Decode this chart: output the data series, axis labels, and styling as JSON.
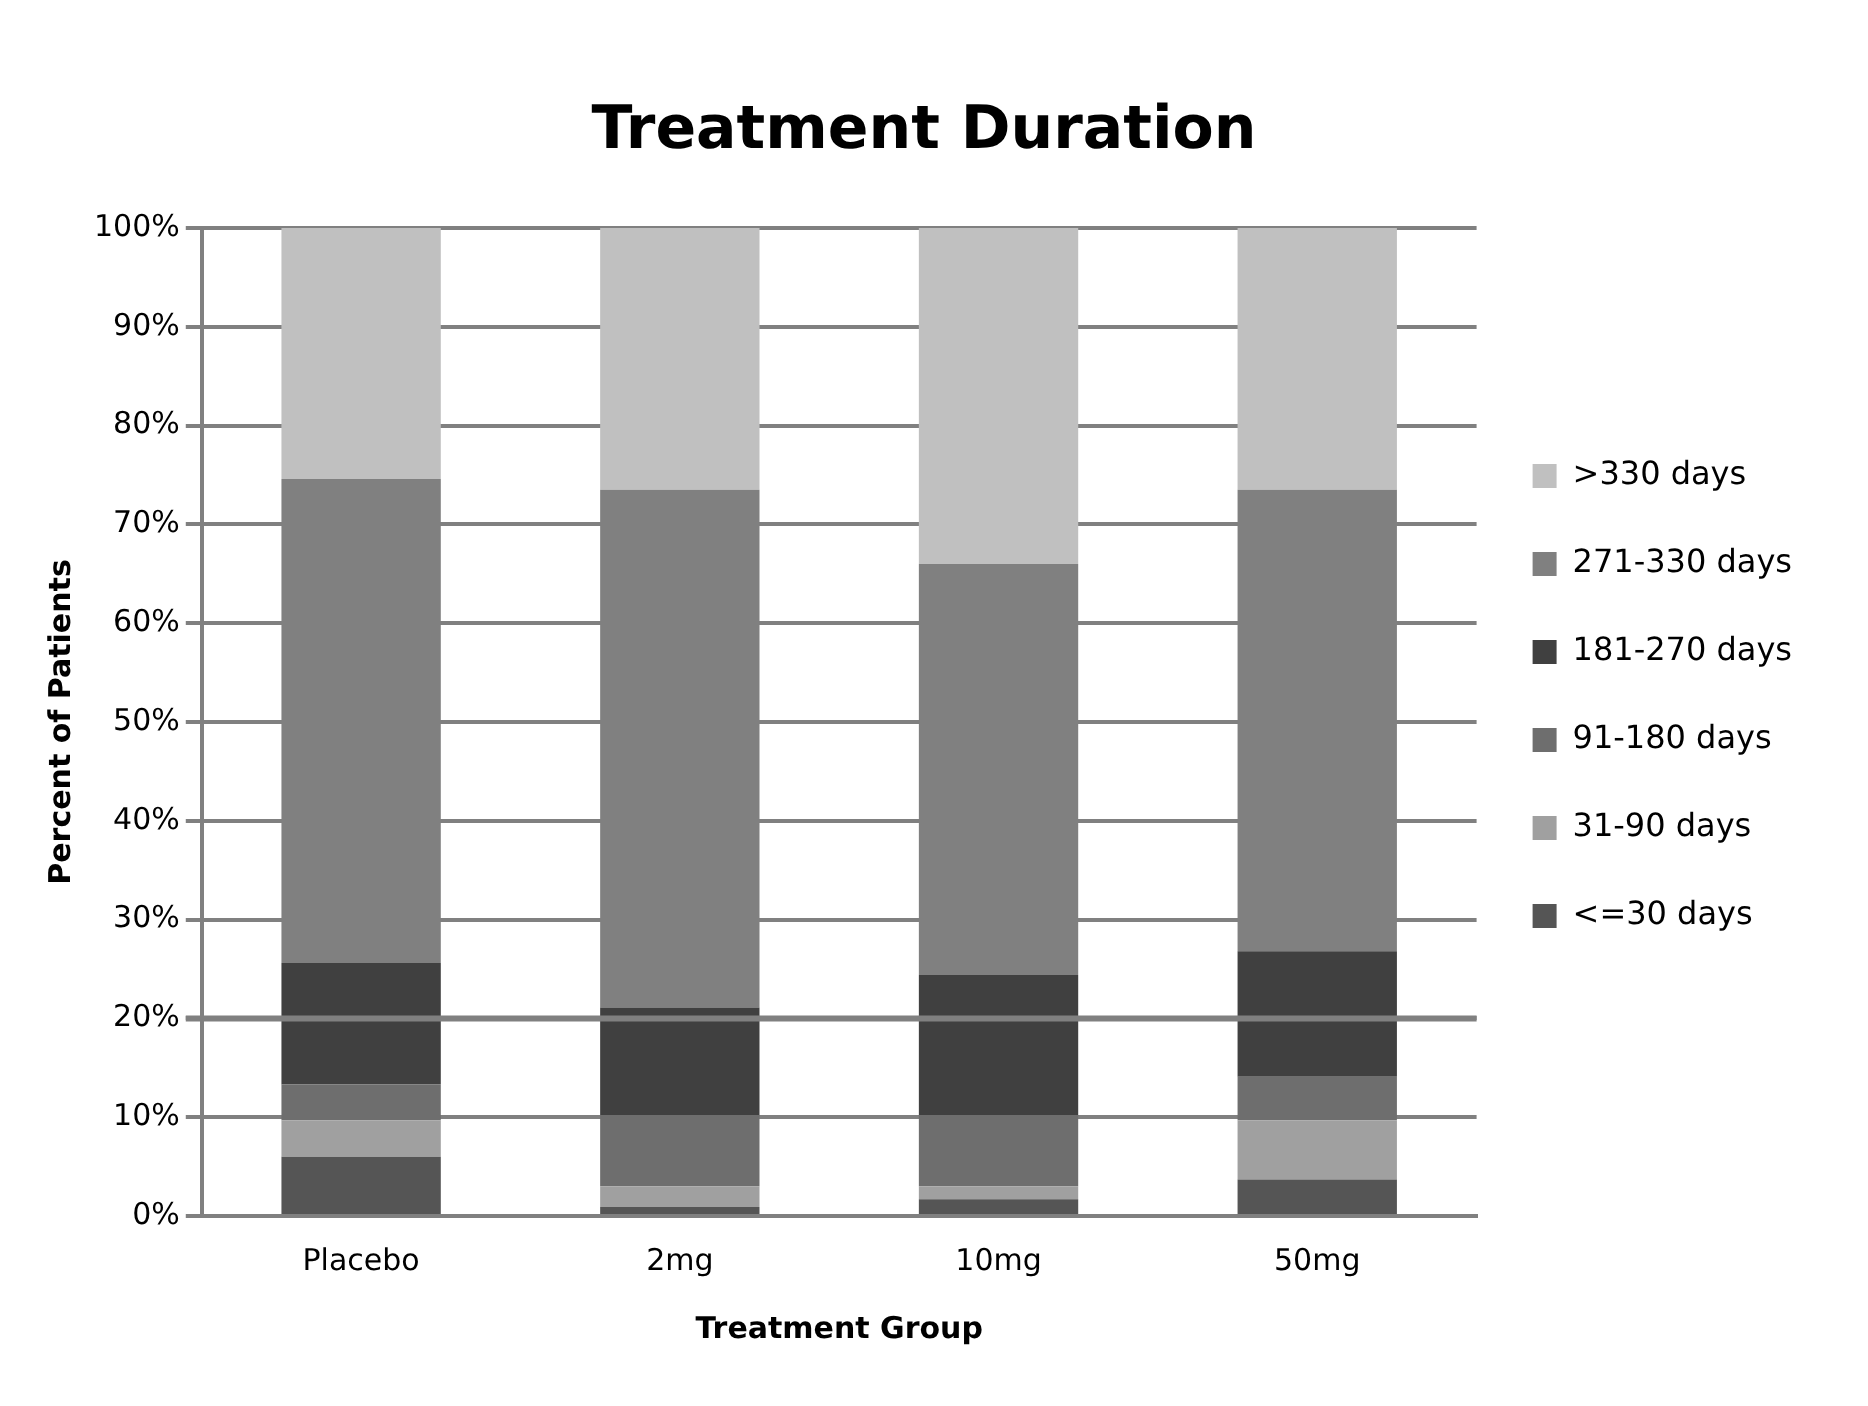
{
  "chart_data": {
    "type": "bar",
    "title": "Treatment Duration",
    "xlabel": "Treatment Group",
    "ylabel": "Percent of Patients",
    "categories": [
      "Placebo",
      "2mg",
      "10mg",
      "50mg"
    ],
    "stacked": true,
    "series": [
      {
        "name": "<=30 days",
        "color": "#555555",
        "values": [
          6,
          0.9,
          1.7,
          3.7
        ]
      },
      {
        "name": "31-90 days",
        "color": "#a0a0a0",
        "values": [
          3.7,
          2.1,
          1.3,
          6.0
        ]
      },
      {
        "name": "91-180 days",
        "color": "#6e6e6e",
        "values": [
          3.6,
          7.2,
          7.2,
          4.4
        ]
      },
      {
        "name": "181-270 days",
        "color": "#404040",
        "values": [
          12.3,
          10.9,
          14.2,
          12.7
        ]
      },
      {
        "name": "271-330 days",
        "color": "#808080",
        "values": [
          49,
          52.4,
          41.6,
          46.7
        ]
      },
      {
        "name": ">330 days",
        "color": "#c0c0c0",
        "values": [
          25.4,
          26.5,
          34,
          26.5
        ]
      }
    ],
    "ylim": [
      0,
      100
    ],
    "yticks": [
      {
        "value": 0,
        "label": "0%"
      },
      {
        "value": 10,
        "label": "10%"
      },
      {
        "value": 20,
        "label": "20%"
      },
      {
        "value": 30,
        "label": "30%"
      },
      {
        "value": 40,
        "label": "40%"
      },
      {
        "value": 50,
        "label": "50%"
      },
      {
        "value": 60,
        "label": "60%"
      },
      {
        "value": 70,
        "label": "70%"
      },
      {
        "value": 80,
        "label": "80%"
      },
      {
        "value": 90,
        "label": "90%"
      },
      {
        "value": 100,
        "label": "100%"
      }
    ],
    "ref_lines": [
      {
        "axis": "y",
        "value": 20,
        "color": "#808080"
      }
    ],
    "grid": "y",
    "legend": "right"
  }
}
